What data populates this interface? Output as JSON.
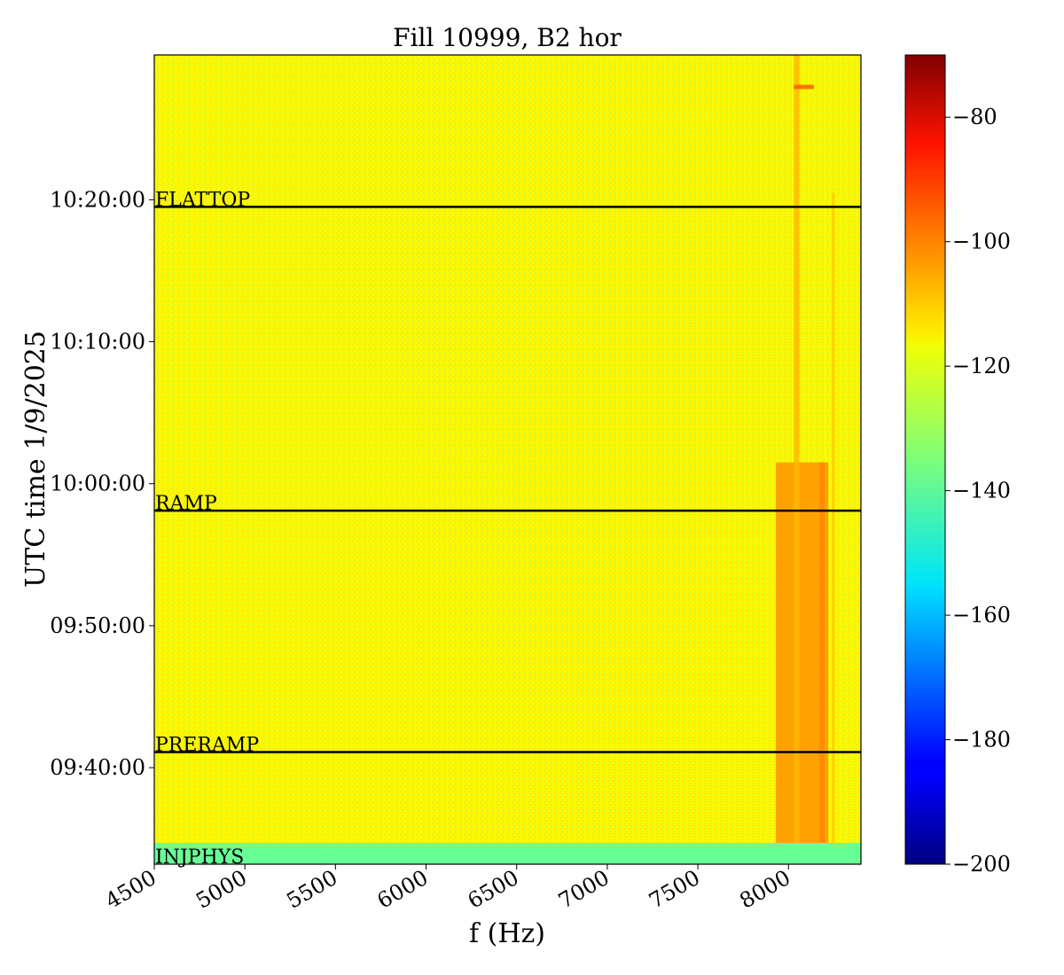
{
  "chart_data": {
    "type": "heatmap",
    "title": "Fill 10999, B2 hor",
    "xlabel": "f (Hz)",
    "ylabel": "UTC time 1/9/2025",
    "xlim": [
      4500,
      8400
    ],
    "ylim_minutes": [
      573.2,
      630.2
    ],
    "x_ticks": [
      {
        "value": 4500,
        "label": "4500"
      },
      {
        "value": 5000,
        "label": "5000"
      },
      {
        "value": 5500,
        "label": "5500"
      },
      {
        "value": 6000,
        "label": "6000"
      },
      {
        "value": 6500,
        "label": "6500"
      },
      {
        "value": 7000,
        "label": "7000"
      },
      {
        "value": 7500,
        "label": "7500"
      },
      {
        "value": 8000,
        "label": "8000"
      }
    ],
    "y_ticks": [
      {
        "value": 580,
        "label": "09:40:00"
      },
      {
        "value": 590,
        "label": "09:50:00"
      },
      {
        "value": 600,
        "label": "10:00:00"
      },
      {
        "value": 610,
        "label": "10:10:00"
      },
      {
        "value": 620,
        "label": "10:20:00"
      }
    ],
    "colorbar": {
      "colormap": "jet",
      "range": [
        -200,
        -70
      ],
      "ticks": [
        {
          "value": -80,
          "label": "−80"
        },
        {
          "value": -100,
          "label": "−100"
        },
        {
          "value": -120,
          "label": "−120"
        },
        {
          "value": -140,
          "label": "−140"
        },
        {
          "value": -160,
          "label": "−160"
        },
        {
          "value": -180,
          "label": "−180"
        },
        {
          "value": -200,
          "label": "−200"
        }
      ]
    },
    "background_level": -118,
    "bands": [
      {
        "y_start": 573.2,
        "y_end": 574.7,
        "level": -138
      }
    ],
    "features": [
      {
        "f_start": 7930,
        "f_end": 8220,
        "y_start": 574.7,
        "y_end": 601.5,
        "level": -105
      },
      {
        "f_start": 8030,
        "f_end": 8060,
        "y_start": 574.7,
        "y_end": 630.2,
        "level": -110
      },
      {
        "f_start": 8170,
        "f_end": 8200,
        "y_start": 574.7,
        "y_end": 601.5,
        "level": -104
      },
      {
        "f_start": 8240,
        "f_end": 8255,
        "y_start": 574.7,
        "y_end": 620.5,
        "level": -112
      },
      {
        "f_start": 8030,
        "f_end": 8140,
        "y_start": 627.8,
        "y_end": 628.1,
        "level": -98
      }
    ],
    "markers": [
      {
        "label": "FLATTOP",
        "y": 619.5
      },
      {
        "label": "RAMP",
        "y": 598.1
      },
      {
        "label": "PRERAMP",
        "y": 581.1
      },
      {
        "label": "INJPHYS",
        "y": 573.2
      }
    ]
  }
}
